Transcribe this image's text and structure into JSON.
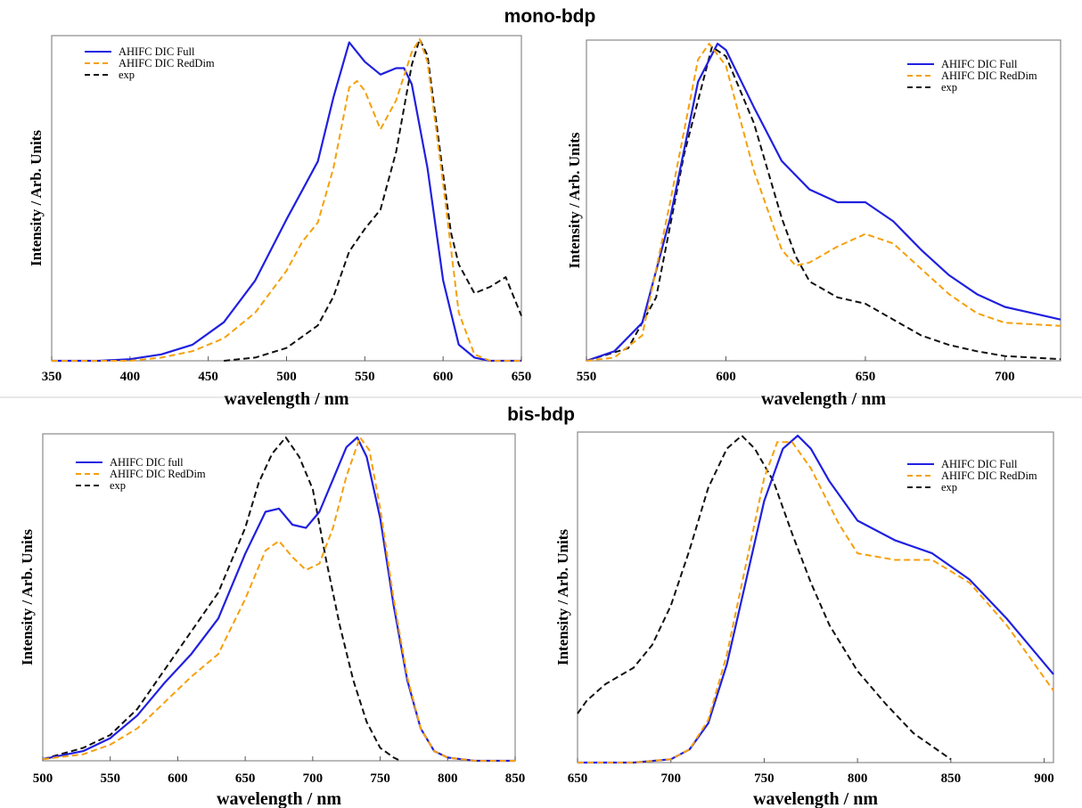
{
  "sections": {
    "top": "mono-bdp",
    "bottom": "bis-bdp"
  },
  "colors": {
    "full": "#2020e0",
    "reddim": "#f5a00a",
    "exp": "#111111"
  },
  "chart_data": [
    {
      "type": "line",
      "section": "mono-bdp",
      "xlabel": "wavelength / nm",
      "ylabel": "Intensity / Arb. Units",
      "xlim": [
        350,
        650
      ],
      "ylim": [
        0,
        1
      ],
      "xticks": [
        "350",
        "400",
        "450",
        "500",
        "550",
        "600",
        "650"
      ],
      "legend_position": "top-left",
      "series": [
        {
          "name": "AHIFC DIC Full",
          "style": "solid",
          "color": "#2020e0",
          "x": [
            350,
            380,
            400,
            420,
            440,
            460,
            480,
            500,
            510,
            520,
            530,
            540,
            550,
            560,
            570,
            575,
            580,
            590,
            600,
            610,
            620,
            630,
            650
          ],
          "y": [
            0,
            0,
            0.005,
            0.02,
            0.05,
            0.12,
            0.25,
            0.44,
            0.53,
            0.62,
            0.82,
            0.99,
            0.93,
            0.89,
            0.91,
            0.91,
            0.86,
            0.6,
            0.25,
            0.05,
            0.01,
            0,
            0
          ]
        },
        {
          "name": "AHIFC DIC RedDim",
          "style": "dashed",
          "color": "#f5a00a",
          "x": [
            350,
            400,
            420,
            440,
            460,
            480,
            500,
            510,
            520,
            530,
            540,
            545,
            550,
            560,
            570,
            580,
            585,
            590,
            600,
            610,
            620,
            630,
            650
          ],
          "y": [
            0,
            0,
            0.01,
            0.03,
            0.07,
            0.15,
            0.28,
            0.37,
            0.43,
            0.6,
            0.85,
            0.87,
            0.84,
            0.72,
            0.81,
            0.96,
            1.0,
            0.93,
            0.55,
            0.15,
            0.02,
            0,
            0
          ]
        },
        {
          "name": "exp",
          "style": "dashed",
          "color": "#111111",
          "x": [
            460,
            480,
            500,
            520,
            530,
            540,
            550,
            560,
            570,
            580,
            585,
            590,
            600,
            605,
            610,
            620,
            630,
            640,
            650
          ],
          "y": [
            0,
            0.01,
            0.04,
            0.11,
            0.2,
            0.34,
            0.41,
            0.47,
            0.65,
            0.92,
            1.0,
            0.95,
            0.58,
            0.4,
            0.3,
            0.21,
            0.23,
            0.26,
            0.14
          ]
        }
      ]
    },
    {
      "type": "line",
      "section": "mono-bdp",
      "xlabel": "wavelength / nm",
      "ylabel": "Intensity / Arb. Units",
      "xlim": [
        550,
        720
      ],
      "ylim": [
        0,
        1
      ],
      "xticks": [
        "550",
        "600",
        "650",
        "700"
      ],
      "legend_position": "top-right",
      "series": [
        {
          "name": "AHIFC DIC Full",
          "style": "solid",
          "color": "#2020e0",
          "x": [
            550,
            560,
            570,
            580,
            590,
            597,
            600,
            610,
            620,
            630,
            640,
            645,
            650,
            660,
            670,
            680,
            690,
            700,
            720
          ],
          "y": [
            0,
            0.03,
            0.12,
            0.45,
            0.88,
            1.0,
            0.98,
            0.8,
            0.63,
            0.54,
            0.5,
            0.5,
            0.5,
            0.44,
            0.35,
            0.27,
            0.21,
            0.17,
            0.13
          ]
        },
        {
          "name": "AHIFC DIC RedDim",
          "style": "dashed",
          "color": "#f5a00a",
          "x": [
            550,
            560,
            570,
            580,
            590,
            594,
            600,
            610,
            620,
            625,
            630,
            640,
            650,
            660,
            670,
            680,
            690,
            700,
            720
          ],
          "y": [
            0,
            0.01,
            0.08,
            0.5,
            0.95,
            1.0,
            0.93,
            0.6,
            0.35,
            0.3,
            0.31,
            0.36,
            0.4,
            0.37,
            0.29,
            0.21,
            0.15,
            0.12,
            0.11
          ]
        },
        {
          "name": "exp",
          "style": "dashed",
          "color": "#111111",
          "x": [
            550,
            565,
            575,
            585,
            595,
            600,
            610,
            620,
            625,
            630,
            640,
            650,
            660,
            670,
            680,
            690,
            700,
            710,
            720
          ],
          "y": [
            0,
            0.04,
            0.2,
            0.65,
            0.99,
            0.96,
            0.75,
            0.45,
            0.33,
            0.25,
            0.2,
            0.18,
            0.13,
            0.08,
            0.05,
            0.03,
            0.015,
            0.01,
            0.005
          ]
        }
      ]
    },
    {
      "type": "line",
      "section": "bis-bdp",
      "xlabel": "wavelength / nm",
      "ylabel": "Intensity / Arb. Units",
      "xlim": [
        500,
        850
      ],
      "ylim": [
        0,
        1
      ],
      "xticks": [
        "500",
        "550",
        "600",
        "650",
        "700",
        "750",
        "800",
        "850"
      ],
      "legend_position": "top-left",
      "series": [
        {
          "name": "AHIFC DIC full",
          "style": "solid",
          "color": "#2020e0",
          "x": [
            500,
            530,
            550,
            570,
            590,
            610,
            630,
            650,
            665,
            675,
            685,
            695,
            705,
            715,
            725,
            733,
            740,
            750,
            760,
            770,
            780,
            790,
            800,
            820,
            850
          ],
          "y": [
            0.005,
            0.03,
            0.07,
            0.14,
            0.24,
            0.33,
            0.44,
            0.64,
            0.77,
            0.78,
            0.73,
            0.72,
            0.77,
            0.87,
            0.97,
            1.0,
            0.94,
            0.75,
            0.48,
            0.25,
            0.1,
            0.03,
            0.01,
            0,
            0
          ]
        },
        {
          "name": "AHIFC DIC RedDim",
          "style": "dashed",
          "color": "#f5a00a",
          "x": [
            500,
            530,
            550,
            570,
            590,
            610,
            630,
            650,
            665,
            675,
            685,
            695,
            705,
            715,
            725,
            735,
            742,
            750,
            760,
            770,
            780,
            790,
            800,
            820,
            850
          ],
          "y": [
            0.005,
            0.02,
            0.05,
            0.1,
            0.18,
            0.26,
            0.33,
            0.5,
            0.65,
            0.68,
            0.63,
            0.59,
            0.61,
            0.72,
            0.88,
            1.0,
            0.96,
            0.78,
            0.5,
            0.26,
            0.1,
            0.03,
            0.01,
            0,
            0
          ]
        },
        {
          "name": "exp",
          "style": "dashed",
          "color": "#111111",
          "x": [
            500,
            530,
            550,
            570,
            590,
            610,
            630,
            650,
            660,
            670,
            680,
            690,
            700,
            710,
            720,
            730,
            740,
            750,
            760,
            765
          ],
          "y": [
            0.005,
            0.04,
            0.08,
            0.16,
            0.28,
            0.4,
            0.52,
            0.72,
            0.86,
            0.95,
            1.0,
            0.94,
            0.84,
            0.62,
            0.42,
            0.25,
            0.12,
            0.04,
            0.01,
            0
          ]
        }
      ]
    },
    {
      "type": "line",
      "section": "bis-bdp",
      "xlabel": "wavelength / nm",
      "ylabel": "Intensity / Arb. Units",
      "xlim": [
        650,
        905
      ],
      "ylim": [
        0,
        1
      ],
      "xticks": [
        "650",
        "700",
        "750",
        "800",
        "850",
        "900"
      ],
      "legend_position": "top-right",
      "series": [
        {
          "name": "AHIFC DIC Full",
          "style": "solid",
          "color": "#2020e0",
          "x": [
            650,
            680,
            700,
            710,
            720,
            730,
            740,
            750,
            760,
            768,
            775,
            785,
            800,
            820,
            840,
            860,
            880,
            905
          ],
          "y": [
            0,
            0,
            0.01,
            0.04,
            0.12,
            0.3,
            0.55,
            0.8,
            0.96,
            1.0,
            0.96,
            0.86,
            0.74,
            0.68,
            0.64,
            0.56,
            0.44,
            0.27
          ]
        },
        {
          "name": "AHIFC DIC RedDim",
          "style": "dashed",
          "color": "#f5a00a",
          "x": [
            650,
            680,
            700,
            710,
            720,
            730,
            740,
            750,
            757,
            765,
            775,
            790,
            800,
            820,
            840,
            860,
            880,
            905
          ],
          "y": [
            0,
            0,
            0.01,
            0.04,
            0.13,
            0.33,
            0.6,
            0.87,
            0.98,
            0.98,
            0.9,
            0.73,
            0.64,
            0.62,
            0.62,
            0.55,
            0.42,
            0.22
          ]
        },
        {
          "name": "exp",
          "style": "dashed",
          "color": "#111111",
          "x": [
            650,
            655,
            665,
            680,
            690,
            700,
            710,
            720,
            730,
            738,
            745,
            755,
            765,
            775,
            785,
            800,
            815,
            830,
            850
          ],
          "y": [
            0.15,
            0.19,
            0.24,
            0.29,
            0.36,
            0.48,
            0.65,
            0.84,
            0.96,
            1.0,
            0.96,
            0.86,
            0.7,
            0.55,
            0.42,
            0.28,
            0.18,
            0.09,
            0.01
          ]
        }
      ]
    }
  ]
}
